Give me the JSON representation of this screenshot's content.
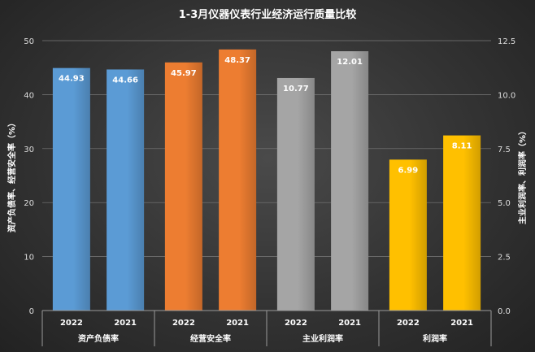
{
  "chart_data": {
    "type": "bar",
    "title": "1-3月仪器仪表行业经济运行质量比较",
    "ylabel_left": "资产负债率、经营安全率（%）",
    "ylabel_right": "主业利润率、利润率（%）",
    "left_axis": {
      "ylim": [
        0,
        50
      ],
      "ticks": [
        "0",
        "10",
        "20",
        "30",
        "40",
        "50"
      ]
    },
    "right_axis": {
      "ylim": [
        0,
        12.5
      ],
      "ticks": [
        "0.0",
        "2.5",
        "5.0",
        "7.5",
        "10.0",
        "12.5"
      ]
    },
    "groups": [
      {
        "name": "资产负债率",
        "axis": "left",
        "color": "#5b9bd5",
        "bars": [
          {
            "year": "2022",
            "value": 44.93,
            "label": "44.93"
          },
          {
            "year": "2021",
            "value": 44.66,
            "label": "44.66"
          }
        ]
      },
      {
        "name": "经营安全率",
        "axis": "left",
        "color": "#ed7d31",
        "bars": [
          {
            "year": "2022",
            "value": 45.97,
            "label": "45.97"
          },
          {
            "year": "2021",
            "value": 48.37,
            "label": "48.37"
          }
        ]
      },
      {
        "name": "主业利润率",
        "axis": "right",
        "color": "#a5a5a5",
        "bars": [
          {
            "year": "2022",
            "value": 10.77,
            "label": "10.77"
          },
          {
            "year": "2021",
            "value": 12.01,
            "label": "12.01"
          }
        ]
      },
      {
        "name": "利润率",
        "axis": "right",
        "color": "#ffc000",
        "bars": [
          {
            "year": "2022",
            "value": 6.99,
            "label": "6.99"
          },
          {
            "year": "2021",
            "value": 8.11,
            "label": "8.11"
          }
        ]
      }
    ]
  }
}
